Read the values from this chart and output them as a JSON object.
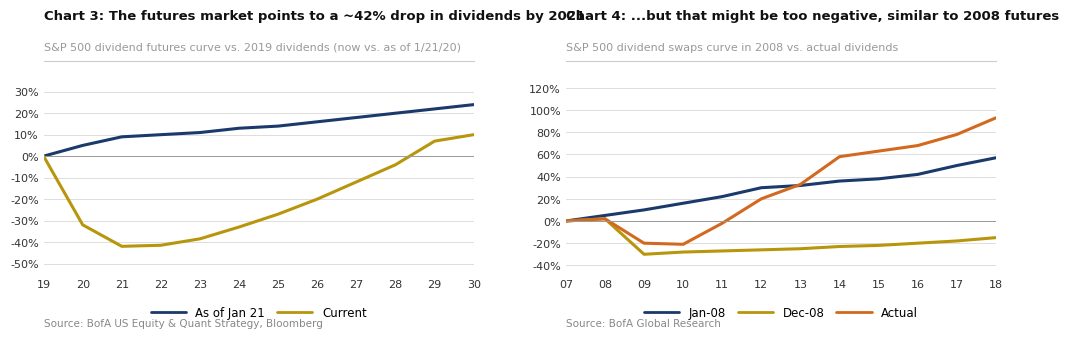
{
  "chart3": {
    "title": "Chart 3: The futures market points to a ~42% drop in dividends by 2021",
    "subtitle": "S&P 500 dividend futures curve vs. 2019 dividends (now vs. as of 1/21/20)",
    "source": "Source: BofA US Equity & Quant Strategy, Bloomberg",
    "x": [
      19,
      20,
      21,
      22,
      23,
      24,
      25,
      26,
      27,
      28,
      29,
      30
    ],
    "jan21": [
      0.0,
      0.05,
      0.09,
      0.1,
      0.11,
      0.13,
      0.14,
      0.16,
      0.18,
      0.2,
      0.22,
      0.24
    ],
    "current": [
      0.0,
      -0.32,
      -0.42,
      -0.415,
      -0.385,
      -0.33,
      -0.27,
      -0.2,
      -0.12,
      -0.04,
      0.07,
      0.1
    ],
    "ylim": [
      -0.55,
      0.38
    ],
    "yticks": [
      -0.5,
      -0.4,
      -0.3,
      -0.2,
      -0.1,
      0.0,
      0.1,
      0.2,
      0.3
    ],
    "xticks": [
      19,
      20,
      21,
      22,
      23,
      24,
      25,
      26,
      27,
      28,
      29,
      30
    ],
    "color_jan21": "#1a3a6b",
    "color_current": "#b8960c",
    "legend_labels": [
      "As of Jan 21",
      "Current"
    ]
  },
  "chart4": {
    "title": "Chart 4: ...but that might be too negative, similar to 2008 futures",
    "subtitle": "S&P 500 dividend swaps curve in 2008 vs. actual dividends",
    "source": "Source: BofA Global Research",
    "x": [
      7,
      8,
      9,
      10,
      11,
      12,
      13,
      14,
      15,
      16,
      17,
      18
    ],
    "jan08": [
      0.0,
      0.05,
      0.1,
      0.16,
      0.22,
      0.3,
      0.32,
      0.36,
      0.38,
      0.42,
      0.5,
      0.57
    ],
    "dec08": [
      0.0,
      0.02,
      -0.3,
      -0.28,
      -0.27,
      -0.26,
      -0.25,
      -0.23,
      -0.22,
      -0.2,
      -0.18,
      -0.15
    ],
    "actual": [
      0.0,
      0.02,
      -0.2,
      -0.21,
      -0.02,
      0.2,
      0.33,
      0.58,
      0.63,
      0.68,
      0.78,
      0.93
    ],
    "ylim": [
      -0.48,
      1.32
    ],
    "yticks": [
      -0.4,
      -0.2,
      0.0,
      0.2,
      0.4,
      0.6,
      0.8,
      1.0,
      1.2
    ],
    "xticks": [
      7,
      8,
      9,
      10,
      11,
      12,
      13,
      14,
      15,
      16,
      17,
      18
    ],
    "color_jan08": "#1a3a6b",
    "color_dec08": "#b8960c",
    "color_actual": "#d2691e",
    "legend_labels": [
      "Jan-08",
      "Dec-08",
      "Actual"
    ]
  },
  "bg_color": "#ffffff",
  "title_fontsize": 9.5,
  "subtitle_fontsize": 8,
  "tick_fontsize": 8,
  "source_fontsize": 7.5,
  "legend_fontsize": 8.5,
  "line_width": 2.2
}
